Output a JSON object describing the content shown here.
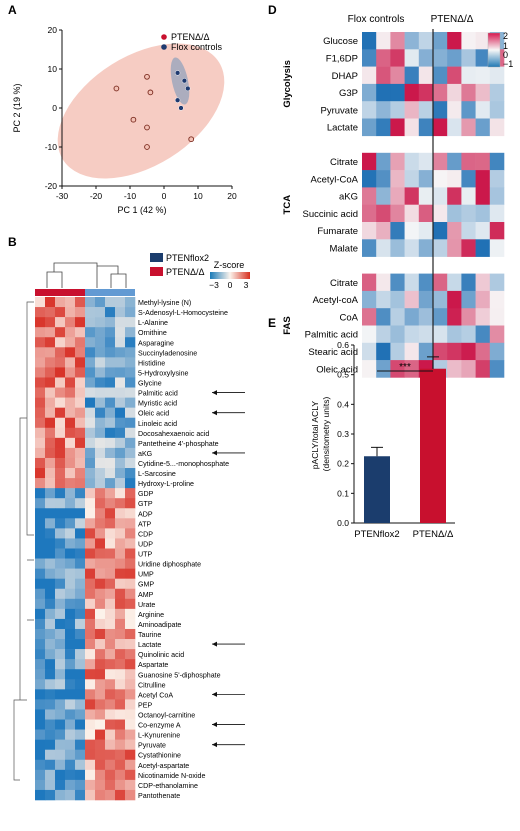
{
  "panel_labels": {
    "A": "A",
    "B": "B",
    "D": "D",
    "E": "E"
  },
  "chart_data": [
    {
      "panel": "A",
      "type": "scatter",
      "xlabel": "PC 1 (42 %)",
      "ylabel": "PC 2 (19 %)",
      "xlim": [
        -30,
        20
      ],
      "ylim": [
        -20,
        20
      ],
      "xticks": [
        "-30",
        "-20",
        "-10",
        "0",
        "10",
        "20"
      ],
      "yticks": [
        "-20",
        "-10",
        "0",
        "10",
        "20"
      ],
      "grid": false,
      "legend_position": "top-right",
      "series": [
        {
          "name": "PTENΔ/Δ",
          "color": "#c8102e",
          "points": [
            [
              -14,
              5
            ],
            [
              -5,
              8
            ],
            [
              -4,
              4
            ],
            [
              -9,
              -3
            ],
            [
              -5,
              -5
            ],
            [
              -5,
              -10
            ],
            [
              8,
              -8
            ]
          ]
        },
        {
          "name": "Flox controls",
          "color": "#1f3a70",
          "points": [
            [
              4,
              9
            ],
            [
              6,
              7
            ],
            [
              7,
              5
            ],
            [
              4,
              2
            ],
            [
              5,
              0
            ]
          ]
        }
      ]
    },
    {
      "panel": "B",
      "type": "heatmap",
      "legend": {
        "groups": [
          "PTENflox2",
          "PTENΔ/Δ"
        ],
        "group_colors": [
          "#1b3d6d",
          "#c8102e"
        ],
        "colorbar_title": "Z-score",
        "colorbar_ticks": [
          "−3",
          "0",
          "3"
        ]
      },
      "rows": [
        "Methyl-lysine (N)",
        "S-Adenosyl-L-Homocysteine",
        "L-Alanine",
        "Ornithine",
        "Asparagine",
        "Succinyladenosine",
        "Histidine",
        "5-Hydroxylysine",
        "Glycine",
        "Palmitic acid",
        "Myristic acid",
        "Oleic acid",
        "Linoleic acid",
        "Docosahexaenoic acid",
        "Pantetheine 4'-phosphate",
        "aKG",
        "Cytidine-5...-monophosphate",
        "L-Sarcosine",
        "Hydroxy-L-proline",
        "GDP",
        "GTP",
        "ADP",
        "ATP",
        "CDP",
        "UDP",
        "UTP",
        "Uridine diphosphate",
        "UMP",
        "GMP",
        "AMP",
        "Urate",
        "Arginine",
        "Aminoadipate",
        "Taurine",
        "Lactate",
        "Quinolinic acid",
        "Aspartate",
        "Guanosine 5'-diphosphate",
        "Citrulline",
        "Acetyl CoA",
        "PEP",
        "Octanoyl-carnitine",
        "Co-enzyme A",
        "L-Kynurenine",
        "Pyruvate",
        "Cystathionine",
        "Acetyl-aspartate",
        "Nicotinamide N-oxide",
        "CDP-ethanolamine",
        "Pantothenate"
      ],
      "arrowed_rows": [
        "Palmitic acid",
        "Oleic acid",
        "aKG",
        "Lactate",
        "Acetyl CoA",
        "Co-enzyme A",
        "Pyruvate"
      ],
      "n_samples_per_group": 5
    },
    {
      "panel": "D",
      "type": "heatmap",
      "columns": [
        "Flox controls",
        "PTENΔ/Δ"
      ],
      "colorbar_ticks": [
        "2",
        "1",
        "0",
        "−1"
      ],
      "groups": [
        {
          "name": "Glycolysis",
          "rows": [
            "Glucose",
            "F1,6DP",
            "DHAP",
            "G3P",
            "Pyruvate",
            "Lactate"
          ]
        },
        {
          "name": "TCA",
          "rows": [
            "Citrate",
            "Acetyl-CoA",
            "aKG",
            "Succinic acid",
            "Fumarate",
            "Malate"
          ]
        },
        {
          "name": "FAS",
          "rows": [
            "Citrate",
            "Acetyl-coA",
            "CoA",
            "Palmitic acid",
            "Stearic acid",
            "Oleic acid"
          ]
        }
      ]
    },
    {
      "panel": "E",
      "type": "bar",
      "categories": [
        "PTENflox2",
        "PTENΔ/Δ"
      ],
      "values": [
        0.225,
        0.52
      ],
      "errors": [
        0.03,
        0.04
      ],
      "colors": [
        "#1b3d6d",
        "#c8102e"
      ],
      "ylabel": "pACLY/total ACLY (densitometry units)",
      "ylim": [
        0,
        0.6
      ],
      "yticks": [
        "0.0",
        "0.1",
        "0.2",
        "0.3",
        "0.4",
        "0.5",
        "0.6"
      ],
      "significance": "***"
    }
  ]
}
